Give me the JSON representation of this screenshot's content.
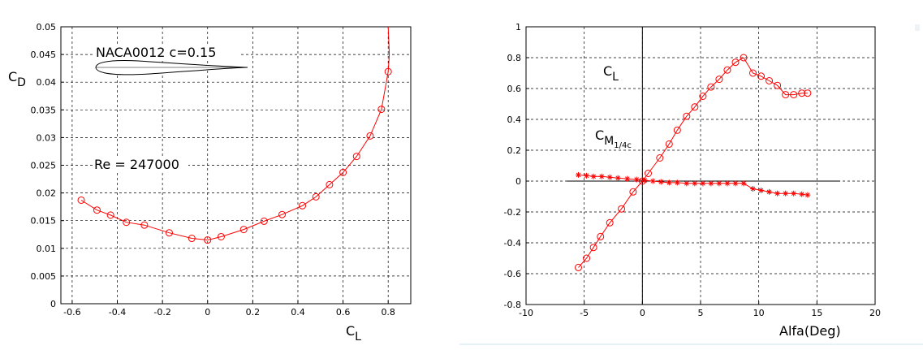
{
  "chart_data": [
    {
      "type": "line",
      "title": "",
      "xlabel": "C",
      "xlabel_sub": "L",
      "ylabel": "C",
      "ylabel_sub": "D",
      "xlim": [
        -0.65,
        0.9
      ],
      "ylim": [
        0,
        0.05
      ],
      "x_ticks": [
        -0.6,
        -0.4,
        -0.2,
        0,
        0.2,
        0.4,
        0.6,
        0.8
      ],
      "x_tick_labels": [
        "-0.6",
        "-0.4",
        "-0.2",
        "0",
        "0.2",
        "0.4",
        "0.6",
        "0.8"
      ],
      "y_ticks": [
        0,
        0.005,
        0.01,
        0.015,
        0.02,
        0.025,
        0.03,
        0.035,
        0.04,
        0.045,
        0.05
      ],
      "y_tick_labels": [
        "0",
        "0.005",
        "0.01",
        "0.015",
        "0.02",
        "0.025",
        "0.03",
        "0.035",
        "0.04",
        "0.045",
        "0.05"
      ],
      "grid": true,
      "marker": "circle",
      "color": "#ff0000",
      "annotations": [
        {
          "text": "NACA0012   c=0.15"
        },
        {
          "text": "Re = 247000"
        }
      ],
      "airfoil": "NACA0012",
      "series": [
        {
          "x": [
            -0.56,
            -0.49,
            -0.43,
            -0.36,
            -0.28,
            -0.17,
            -0.07,
            0.0,
            0.06,
            0.16,
            0.25,
            0.33,
            0.42,
            0.48,
            0.54,
            0.6,
            0.66,
            0.72,
            0.77,
            0.8
          ],
          "y": [
            0.0187,
            0.0169,
            0.016,
            0.0147,
            0.0142,
            0.0128,
            0.0118,
            0.0115,
            0.0121,
            0.0134,
            0.0149,
            0.0161,
            0.0177,
            0.0193,
            0.0215,
            0.0237,
            0.0266,
            0.0303,
            0.0351,
            0.0419
          ]
        }
      ],
      "line_only": {
        "x": [
          0.8,
          0.805,
          0.8
        ],
        "y": [
          0.0419,
          0.045,
          0.05
        ]
      }
    },
    {
      "type": "line",
      "title": "",
      "xlabel": "Alfa(Deg)",
      "ylabel": "",
      "xlim": [
        -10,
        20
      ],
      "ylim": [
        -0.8,
        1
      ],
      "x_ticks": [
        -10,
        -5,
        0,
        5,
        10,
        15,
        20
      ],
      "x_tick_labels": [
        "-10",
        "-5",
        "0",
        "5",
        "10",
        "15",
        "20"
      ],
      "y_ticks": [
        -0.8,
        -0.6,
        -0.4,
        -0.2,
        0,
        0.2,
        0.4,
        0.6,
        0.8,
        1
      ],
      "y_tick_labels": [
        "-0.8",
        "-0.6",
        "-0.4",
        "-0.2",
        "0",
        "0.2",
        "0.4",
        "0.6",
        "0.8",
        "1"
      ],
      "grid": true,
      "color": "#ff0000",
      "series": [
        {
          "name": "C_L",
          "label": "C",
          "label_sub": "L",
          "marker": "circle",
          "x": [
            -5.5,
            -4.8,
            -4.2,
            -3.6,
            -2.8,
            -1.8,
            -0.8,
            0.0,
            0.5,
            1.5,
            2.3,
            3.0,
            3.8,
            4.5,
            5.2,
            5.9,
            6.6,
            7.3,
            8.0,
            8.7,
            9.5,
            10.2,
            10.9,
            11.6,
            12.3,
            13.0,
            13.7,
            14.2
          ],
          "y": [
            -0.56,
            -0.5,
            -0.43,
            -0.36,
            -0.27,
            -0.18,
            -0.07,
            0.0,
            0.05,
            0.15,
            0.24,
            0.33,
            0.42,
            0.48,
            0.55,
            0.61,
            0.66,
            0.72,
            0.77,
            0.8,
            0.7,
            0.68,
            0.65,
            0.62,
            0.56,
            0.56,
            0.57,
            0.57
          ]
        },
        {
          "name": "C_M1/4c",
          "label": "C",
          "label_sub": "M",
          "label_subsub": "1/4c",
          "marker": "star",
          "x": [
            -5.5,
            -4.8,
            -4.2,
            -3.5,
            -2.8,
            -2.1,
            -1.3,
            -0.5,
            0.2,
            0.9,
            1.6,
            2.3,
            3.0,
            3.8,
            4.5,
            5.2,
            5.9,
            6.6,
            7.3,
            8.0,
            8.7,
            9.5,
            10.2,
            10.9,
            11.6,
            12.3,
            13.0,
            13.7,
            14.2
          ],
          "y": [
            0.04,
            0.035,
            0.03,
            0.03,
            0.025,
            0.02,
            0.015,
            0.01,
            0.005,
            0.0,
            -0.005,
            -0.01,
            -0.01,
            -0.015,
            -0.015,
            -0.015,
            -0.015,
            -0.015,
            -0.015,
            -0.015,
            -0.015,
            -0.05,
            -0.06,
            -0.07,
            -0.08,
            -0.08,
            -0.08,
            -0.085,
            -0.09
          ]
        }
      ]
    }
  ]
}
